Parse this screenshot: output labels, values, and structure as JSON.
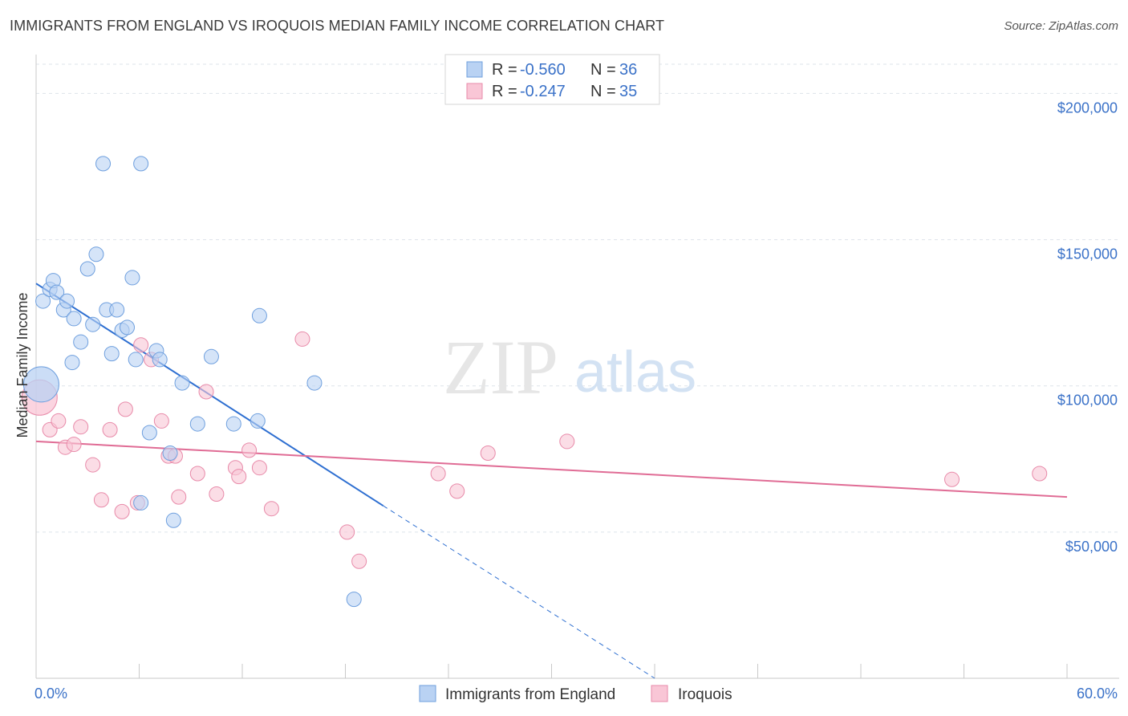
{
  "title": "IMMIGRANTS FROM ENGLAND VS IROQUOIS MEDIAN FAMILY INCOME CORRELATION CHART",
  "source": "Source: ZipAtlas.com",
  "watermark": {
    "zip": "ZIP",
    "atlas": "atlas"
  },
  "colors": {
    "england_fill": "#b9d2f3",
    "england_stroke": "#6e9fde",
    "england_line": "#2e6fd1",
    "iroquois_fill": "#f9c6d6",
    "iroquois_stroke": "#e88aa9",
    "iroquois_line": "#e06c95",
    "value_text": "#3b72c8",
    "grid": "#dde3ea"
  },
  "legend": {
    "r_label": "R =",
    "n_label": "N =",
    "england": {
      "r": "-0.560",
      "n": "36"
    },
    "iroquois": {
      "r": "-0.247",
      "n": "35"
    }
  },
  "chart_data": {
    "type": "scatter",
    "title": "IMMIGRANTS FROM ENGLAND VS IROQUOIS MEDIAN FAMILY INCOME CORRELATION CHART",
    "xlabel": "",
    "ylabel": "Median Family Income",
    "xlim": [
      0,
      60
    ],
    "ylim": [
      0,
      210000
    ],
    "x_tick_labels": [
      "0.0%",
      "60.0%"
    ],
    "y_ticks": [
      50000,
      100000,
      150000,
      200000
    ],
    "y_tick_labels": [
      "$50,000",
      "$100,000",
      "$150,000",
      "$200,000"
    ],
    "grid": true,
    "legend_position": "top-center",
    "bottom_legend": [
      "Immigrants from England",
      "Iroquois"
    ],
    "series": [
      {
        "name": "Immigrants from England",
        "points": [
          [
            0.3,
            100500,
            "large"
          ],
          [
            0.4,
            129000
          ],
          [
            0.8,
            133000
          ],
          [
            1.0,
            136000
          ],
          [
            1.2,
            132000
          ],
          [
            1.6,
            126000
          ],
          [
            1.8,
            129000
          ],
          [
            2.2,
            123000
          ],
          [
            2.1,
            108000
          ],
          [
            2.6,
            115000
          ],
          [
            3.0,
            140000
          ],
          [
            3.3,
            121000
          ],
          [
            3.5,
            145000
          ],
          [
            3.9,
            176000
          ],
          [
            4.1,
            126000
          ],
          [
            4.4,
            111000
          ],
          [
            4.7,
            126000
          ],
          [
            5.0,
            119000
          ],
          [
            5.3,
            120000
          ],
          [
            5.6,
            137000
          ],
          [
            5.8,
            109000
          ],
          [
            6.1,
            176000
          ],
          [
            6.6,
            84000
          ],
          [
            7.0,
            112000
          ],
          [
            7.2,
            109000
          ],
          [
            7.8,
            77000
          ],
          [
            8.0,
            54000
          ],
          [
            8.5,
            101000
          ],
          [
            9.4,
            87000
          ],
          [
            10.2,
            110000
          ],
          [
            11.5,
            87000
          ],
          [
            12.9,
            88000
          ],
          [
            13.0,
            124000
          ],
          [
            16.2,
            101000
          ],
          [
            18.5,
            27000
          ],
          [
            6.1,
            60000
          ]
        ],
        "trend": {
          "x0": 0,
          "y0": 135000,
          "x1": 20.2,
          "y1": 59000,
          "dashed_to_x": 36.0,
          "dashed_to_y": 0
        }
      },
      {
        "name": "Iroquois",
        "points": [
          [
            0.2,
            96000,
            "large"
          ],
          [
            0.8,
            85000
          ],
          [
            1.3,
            88000
          ],
          [
            1.7,
            79000
          ],
          [
            2.2,
            80000
          ],
          [
            2.6,
            86000
          ],
          [
            3.3,
            73000
          ],
          [
            3.8,
            61000
          ],
          [
            4.3,
            85000
          ],
          [
            5.0,
            57000
          ],
          [
            5.2,
            92000
          ],
          [
            5.9,
            60000
          ],
          [
            6.1,
            114000
          ],
          [
            6.7,
            109000
          ],
          [
            7.3,
            88000
          ],
          [
            7.7,
            76000
          ],
          [
            8.1,
            76000
          ],
          [
            8.3,
            62000
          ],
          [
            9.4,
            70000
          ],
          [
            9.9,
            98000
          ],
          [
            10.5,
            63000
          ],
          [
            11.6,
            72000
          ],
          [
            11.8,
            69000
          ],
          [
            12.4,
            78000
          ],
          [
            13.0,
            72000
          ],
          [
            13.7,
            58000
          ],
          [
            15.5,
            116000
          ],
          [
            18.1,
            50000
          ],
          [
            18.8,
            40000
          ],
          [
            23.4,
            70000
          ],
          [
            24.5,
            64000
          ],
          [
            26.3,
            77000
          ],
          [
            30.9,
            81000
          ],
          [
            53.3,
            68000
          ],
          [
            58.4,
            70000
          ]
        ],
        "trend": {
          "x0": 0,
          "y0": 81000,
          "x1": 60,
          "y1": 62000
        }
      }
    ]
  }
}
